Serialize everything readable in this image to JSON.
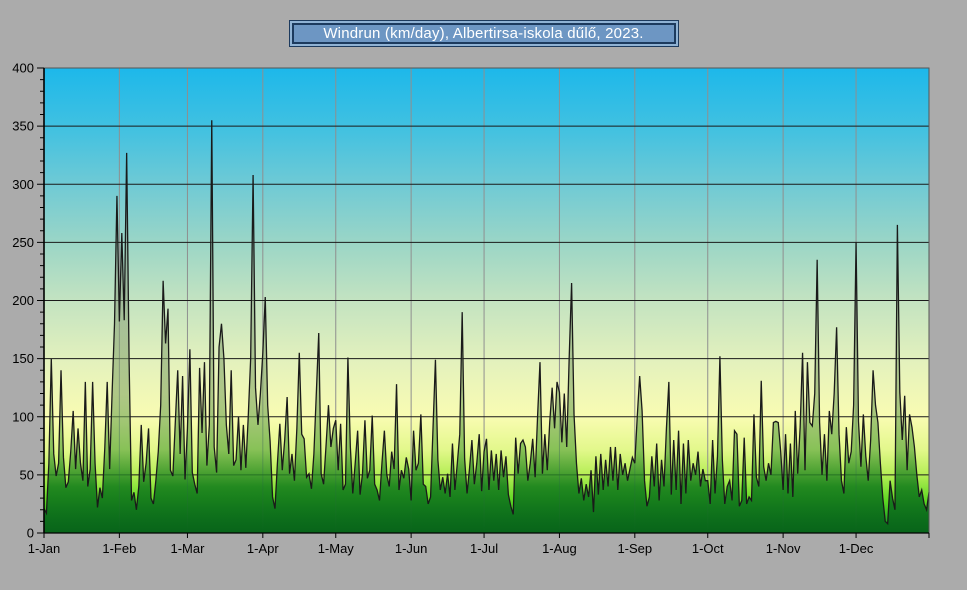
{
  "figure": {
    "background_color": "#ababab"
  },
  "title": {
    "text": "Windrun (km/day), Albertirsa-iskola dűlő, 2023.",
    "fill_color": "#6d96c3",
    "border_color": "#1c3a5e",
    "inner_ring_color": "#8fb2d4",
    "text_color": "#ffffff"
  },
  "chart_data": {
    "type": "area",
    "title": "Windrun (km/day), Albertirsa-iskola dűlő, 2023.",
    "series_name": "Windrun",
    "unit": "km/day",
    "station": "Albertirsa-iskola dűlő",
    "year": "2023",
    "xlabel": "",
    "ylabel": "",
    "x_unit": "day of year 2023",
    "ylim": [
      0,
      400
    ],
    "y_major_step": 50,
    "y_minor_step": 10,
    "grid": "on",
    "legend": "none",
    "y_tick_labels": [
      "0",
      "50",
      "100",
      "150",
      "200",
      "250",
      "300",
      "350",
      "400"
    ],
    "x_tick_labels": [
      "1-Jan",
      "1-Feb",
      "1-Mar",
      "1-Apr",
      "1-May",
      "1-Jun",
      "1-Jul",
      "1-Aug",
      "1-Sep",
      "1-Oct",
      "1-Nov",
      "1-Dec"
    ],
    "days_in_month": [
      31,
      28,
      31,
      30,
      31,
      30,
      31,
      31,
      30,
      31,
      30,
      31
    ],
    "horizontal_grid_color": "#1a1a1a",
    "vertical_grid_color": "#8f8f8f",
    "frame_color": "#555555",
    "axis_color": "#000000",
    "line_color": "#1a1a1a",
    "tick_label_color": "#000000",
    "plot_bg_stops": [
      [
        0,
        "#1db8ea"
      ],
      [
        0.13,
        "#41c1e1"
      ],
      [
        0.25,
        "#6fcad5"
      ],
      [
        0.38,
        "#9cd6c6"
      ],
      [
        0.5,
        "#c3e3c1"
      ],
      [
        0.63,
        "#e3f1bd"
      ],
      [
        0.75,
        "#f9fcb2"
      ],
      [
        0.82,
        "#e3f88c"
      ],
      [
        0.875,
        "#b5ee55"
      ],
      [
        0.93,
        "#5ed822"
      ],
      [
        0.97,
        "#27ad24"
      ],
      [
        1,
        "#0e8328"
      ]
    ],
    "area_fill_stops": [
      [
        0,
        "rgba(130,148,140,0.50)"
      ],
      [
        0.45,
        "rgba(135,152,128,0.50)"
      ],
      [
        0.7,
        "rgba(120,160,95,0.55)"
      ],
      [
        0.82,
        "rgba(80,160,55,0.62)"
      ],
      [
        0.9,
        "rgba(20,125,28,0.88)"
      ],
      [
        1,
        "rgba(8,100,26,1)"
      ]
    ],
    "values": [
      21,
      17,
      60,
      150,
      68,
      49,
      60,
      140,
      65,
      39,
      44,
      70,
      105,
      55,
      90,
      60,
      45,
      130,
      40,
      55,
      130,
      60,
      22,
      39,
      30,
      73,
      130,
      55,
      120,
      180,
      290,
      182,
      258,
      183,
      327,
      148,
      28,
      35,
      20,
      40,
      93,
      44,
      60,
      90,
      30,
      25,
      45,
      70,
      110,
      217,
      163,
      193,
      54,
      49,
      95,
      140,
      68,
      135,
      46,
      90,
      158,
      52,
      42,
      34,
      142,
      86,
      147,
      58,
      93,
      355,
      74,
      52,
      160,
      180,
      150,
      93,
      68,
      140,
      58,
      63,
      100,
      54,
      93,
      56,
      100,
      150,
      308,
      125,
      93,
      120,
      155,
      203,
      110,
      79,
      31,
      21,
      60,
      94,
      54,
      80,
      117,
      51,
      68,
      45,
      90,
      155,
      85,
      81,
      48,
      51,
      38,
      68,
      120,
      172,
      51,
      42,
      75,
      110,
      74,
      90,
      97,
      54,
      94,
      37,
      42,
      151,
      74,
      34,
      60,
      88,
      33,
      51,
      97,
      47,
      54,
      101,
      42,
      37,
      28,
      60,
      88,
      50,
      40,
      70,
      55,
      128,
      37,
      54,
      47,
      65,
      55,
      28,
      88,
      54,
      60,
      102,
      42,
      40,
      25,
      31,
      90,
      149,
      63,
      37,
      48,
      34,
      51,
      31,
      77,
      37,
      60,
      85,
      190,
      64,
      34,
      55,
      80,
      42,
      60,
      85,
      36,
      70,
      81,
      37,
      71,
      45,
      68,
      37,
      71,
      48,
      66,
      33,
      23,
      16,
      82,
      51,
      77,
      80,
      74,
      45,
      60,
      81,
      48,
      100,
      147,
      51,
      85,
      54,
      95,
      125,
      90,
      130,
      121,
      78,
      120,
      74,
      150,
      215,
      102,
      60,
      34,
      47,
      28,
      42,
      31,
      54,
      18,
      66,
      33,
      68,
      37,
      63,
      40,
      74,
      45,
      74,
      37,
      68,
      50,
      60,
      45,
      55,
      65,
      60,
      100,
      135,
      105,
      45,
      23,
      31,
      66,
      40,
      77,
      28,
      63,
      40,
      90,
      130,
      33,
      80,
      37,
      88,
      25,
      77,
      34,
      80,
      45,
      60,
      50,
      70,
      40,
      55,
      45,
      45,
      25,
      80,
      34,
      66,
      152,
      63,
      25,
      40,
      45,
      28,
      88,
      85,
      23,
      28,
      82,
      25,
      31,
      28,
      102,
      48,
      40,
      131,
      57,
      45,
      60,
      50,
      95,
      96,
      95,
      70,
      37,
      85,
      34,
      77,
      31,
      105,
      51,
      91,
      155,
      54,
      147,
      95,
      92,
      120,
      235,
      95,
      50,
      85,
      45,
      105,
      85,
      120,
      177,
      85,
      45,
      34,
      91,
      60,
      70,
      110,
      250,
      96,
      57,
      102,
      66,
      45,
      80,
      140,
      110,
      95,
      60,
      30,
      10,
      8,
      45,
      30,
      20,
      265,
      121,
      80,
      118,
      54,
      102,
      91,
      74,
      50,
      31,
      37,
      25,
      20,
      35
    ]
  }
}
